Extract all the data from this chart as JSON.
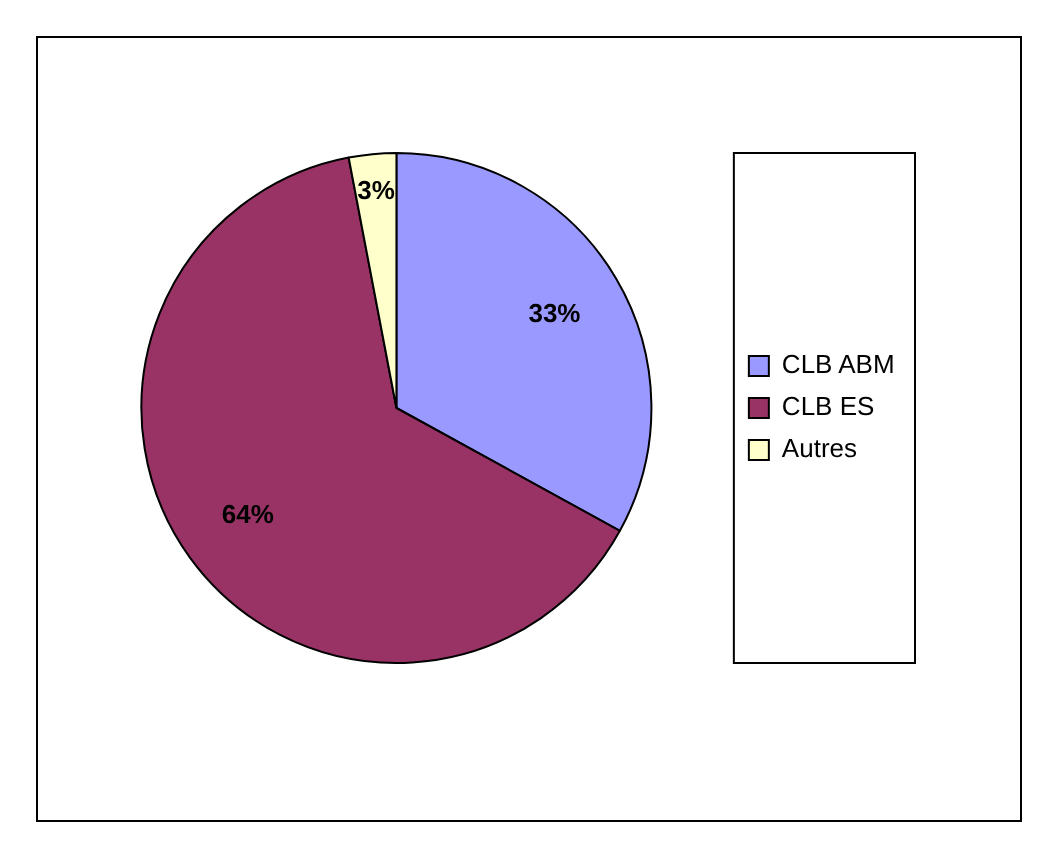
{
  "chart_data": {
    "type": "pie",
    "categories": [
      "CLB ABM",
      "CLB ES",
      "Autres"
    ],
    "values": [
      33,
      64,
      3
    ],
    "colors": [
      "#9999ff",
      "#993366",
      "#ffffcc"
    ],
    "value_labels": [
      "33%",
      "64%",
      "3%"
    ],
    "legend": "right"
  }
}
